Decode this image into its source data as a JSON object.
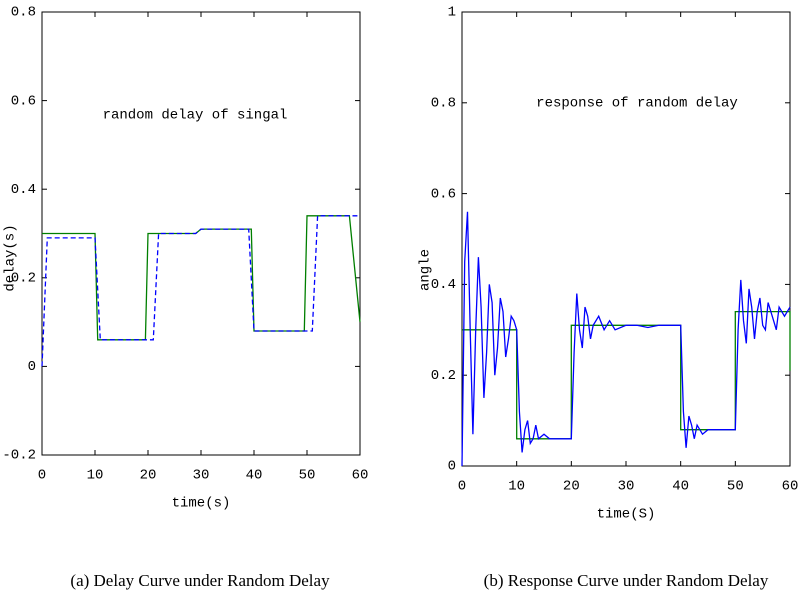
{
  "chart_data": [
    {
      "type": "line",
      "annotation": "random delay of singal",
      "xlabel": "time(s)",
      "ylabel": "delay(s)",
      "caption": "(a) Delay Curve under Random Delay",
      "xlim": [
        0,
        60
      ],
      "ylim": [
        -0.2,
        0.8
      ],
      "xticks": [
        0,
        10,
        20,
        30,
        40,
        50,
        60
      ],
      "yticks": [
        -0.2,
        0,
        0.2,
        0.4,
        0.6,
        0.8
      ],
      "series": [
        {
          "color": "#007f00",
          "linestyle": "solid",
          "x": [
            0,
            10,
            10.5,
            19.5,
            20,
            29,
            30,
            39.5,
            40,
            49.5,
            50,
            58,
            60
          ],
          "values": [
            0.3,
            0.3,
            0.06,
            0.06,
            0.3,
            0.3,
            0.31,
            0.31,
            0.08,
            0.08,
            0.34,
            0.34,
            0.1
          ]
        },
        {
          "color": "#0000ff",
          "linestyle": "dashed",
          "x": [
            0,
            1,
            10,
            11,
            21,
            22,
            29,
            30,
            39,
            40,
            51,
            52,
            59.5
          ],
          "values": [
            0,
            0.29,
            0.29,
            0.06,
            0.06,
            0.3,
            0.3,
            0.31,
            0.31,
            0.08,
            0.08,
            0.34,
            0.34
          ]
        }
      ]
    },
    {
      "type": "line",
      "annotation": "response of random delay",
      "xlabel": "time(S)",
      "ylabel": "angle",
      "caption": "(b) Response Curve under Random Delay",
      "xlim": [
        0,
        60
      ],
      "ylim": [
        0,
        1
      ],
      "xticks": [
        0,
        10,
        20,
        30,
        40,
        50,
        60
      ],
      "yticks": [
        0,
        0.2,
        0.4,
        0.6,
        0.8,
        1
      ],
      "series": [
        {
          "color": "#007f00",
          "linestyle": "solid",
          "x": [
            0,
            10,
            10,
            20,
            20,
            40,
            40,
            50,
            50,
            60,
            60
          ],
          "values": [
            0.3,
            0.3,
            0.06,
            0.06,
            0.31,
            0.31,
            0.08,
            0.08,
            0.34,
            0.34,
            0.21
          ]
        },
        {
          "color": "#0000ff",
          "linestyle": "solid",
          "x": [
            0,
            0.5,
            1,
            1.5,
            2,
            2.5,
            3,
            3.5,
            4,
            4.5,
            5,
            5.5,
            6,
            6.5,
            7,
            7.5,
            8,
            8.5,
            9,
            9.5,
            10,
            10.5,
            11,
            11.5,
            12,
            12.5,
            13,
            13.5,
            14,
            15,
            16,
            18,
            20,
            20.5,
            21,
            21.5,
            22,
            22.5,
            23,
            23.5,
            24,
            25,
            26,
            27,
            28,
            30,
            32,
            34,
            36,
            38,
            40,
            40.5,
            41,
            41.5,
            42,
            42.5,
            43,
            44,
            45,
            46,
            48,
            50,
            50.5,
            51,
            51.5,
            52,
            52.5,
            53,
            53.5,
            54,
            54.5,
            55,
            55.5,
            56,
            57,
            57.5,
            58,
            59,
            60
          ],
          "values": [
            0,
            0.45,
            0.56,
            0.3,
            0.07,
            0.3,
            0.46,
            0.35,
            0.15,
            0.25,
            0.4,
            0.36,
            0.2,
            0.26,
            0.37,
            0.34,
            0.24,
            0.28,
            0.33,
            0.32,
            0.3,
            0.12,
            0.03,
            0.08,
            0.1,
            0.05,
            0.06,
            0.09,
            0.06,
            0.07,
            0.06,
            0.06,
            0.06,
            0.25,
            0.38,
            0.3,
            0.26,
            0.35,
            0.33,
            0.28,
            0.31,
            0.33,
            0.3,
            0.32,
            0.3,
            0.31,
            0.31,
            0.305,
            0.31,
            0.31,
            0.31,
            0.12,
            0.04,
            0.11,
            0.09,
            0.06,
            0.09,
            0.07,
            0.08,
            0.08,
            0.08,
            0.08,
            0.3,
            0.41,
            0.32,
            0.27,
            0.39,
            0.35,
            0.28,
            0.34,
            0.37,
            0.31,
            0.3,
            0.36,
            0.32,
            0.3,
            0.35,
            0.33,
            0.35
          ]
        }
      ]
    }
  ]
}
